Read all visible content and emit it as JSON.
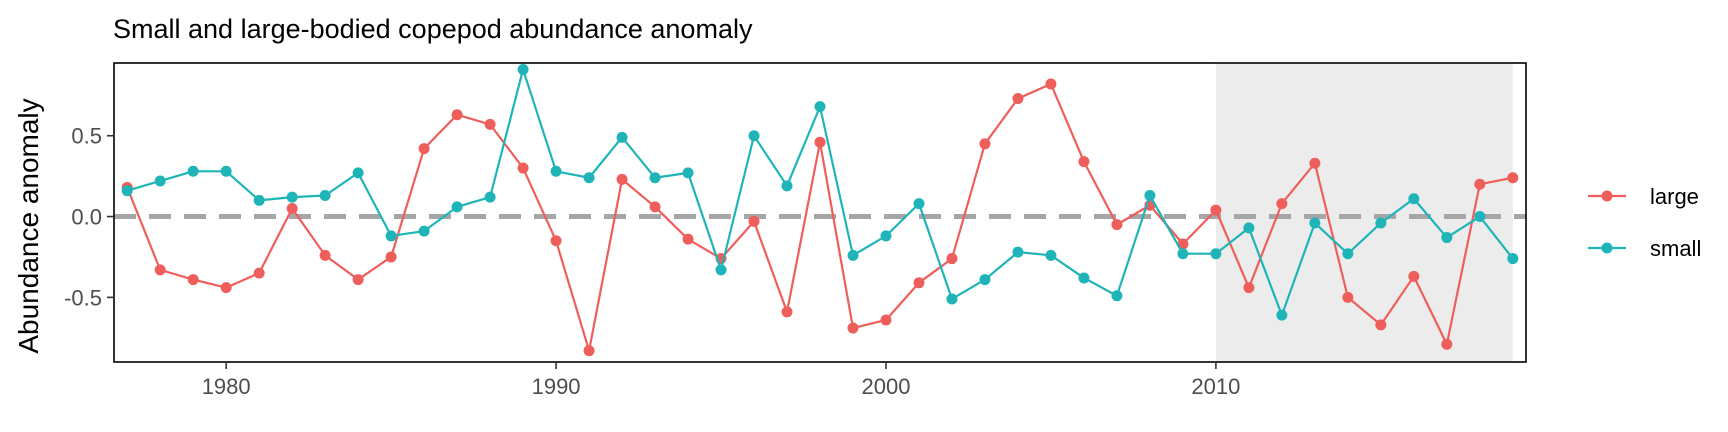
{
  "chart_data": {
    "type": "line",
    "title": "Small and large-bodied copepod abundance anomaly",
    "xlabel": "",
    "ylabel": "Abundance anomaly",
    "xlim": [
      1976.6,
      2019.4
    ],
    "ylim": [
      -0.9,
      0.95
    ],
    "x_ticks": [
      1980,
      1990,
      2000,
      2010
    ],
    "y_ticks": [
      0.5,
      0.0,
      -0.5
    ],
    "y_tick_labels": [
      "0.5",
      "0.0",
      "-0.5"
    ],
    "reference_line": {
      "y": 0,
      "style": "dashed",
      "color": "#a6a6a6"
    },
    "shaded_region": {
      "x_start": 2010,
      "x_end": 2019,
      "color": "#ececec"
    },
    "grid": false,
    "legend_position": "right",
    "x": [
      1977,
      1978,
      1979,
      1980,
      1981,
      1982,
      1983,
      1984,
      1985,
      1986,
      1987,
      1988,
      1989,
      1990,
      1991,
      1992,
      1993,
      1994,
      1995,
      1996,
      1997,
      1998,
      1999,
      2000,
      2001,
      2002,
      2003,
      2004,
      2005,
      2006,
      2007,
      2008,
      2009,
      2010,
      2011,
      2012,
      2013,
      2014,
      2015,
      2016,
      2017,
      2018,
      2019
    ],
    "series": [
      {
        "name": "large",
        "color": "#ee5f5b",
        "values": [
          0.18,
          -0.33,
          -0.39,
          -0.44,
          -0.35,
          0.05,
          -0.24,
          -0.39,
          -0.25,
          0.42,
          0.63,
          0.57,
          0.3,
          -0.15,
          -0.83,
          0.23,
          0.06,
          -0.14,
          -0.26,
          -0.03,
          -0.59,
          0.46,
          -0.69,
          -0.64,
          -0.41,
          -0.26,
          0.45,
          0.73,
          0.82,
          0.34,
          -0.05,
          0.07,
          -0.17,
          0.04,
          -0.44,
          0.08,
          0.33,
          -0.5,
          -0.67,
          -0.37,
          -0.79,
          0.2,
          0.24
        ]
      },
      {
        "name": "small",
        "color": "#1fb5b8",
        "values": [
          0.16,
          0.22,
          0.28,
          0.28,
          0.1,
          0.12,
          0.13,
          0.27,
          -0.12,
          -0.09,
          0.06,
          0.12,
          0.91,
          0.28,
          0.24,
          0.49,
          0.24,
          0.27,
          -0.33,
          0.5,
          0.19,
          0.68,
          -0.24,
          -0.12,
          0.08,
          -0.51,
          -0.39,
          -0.22,
          -0.24,
          -0.38,
          -0.49,
          0.13,
          -0.23,
          -0.23,
          -0.07,
          -0.61,
          -0.04,
          -0.23,
          -0.04,
          0.11,
          -0.13,
          0.0,
          -0.26
        ]
      }
    ]
  }
}
